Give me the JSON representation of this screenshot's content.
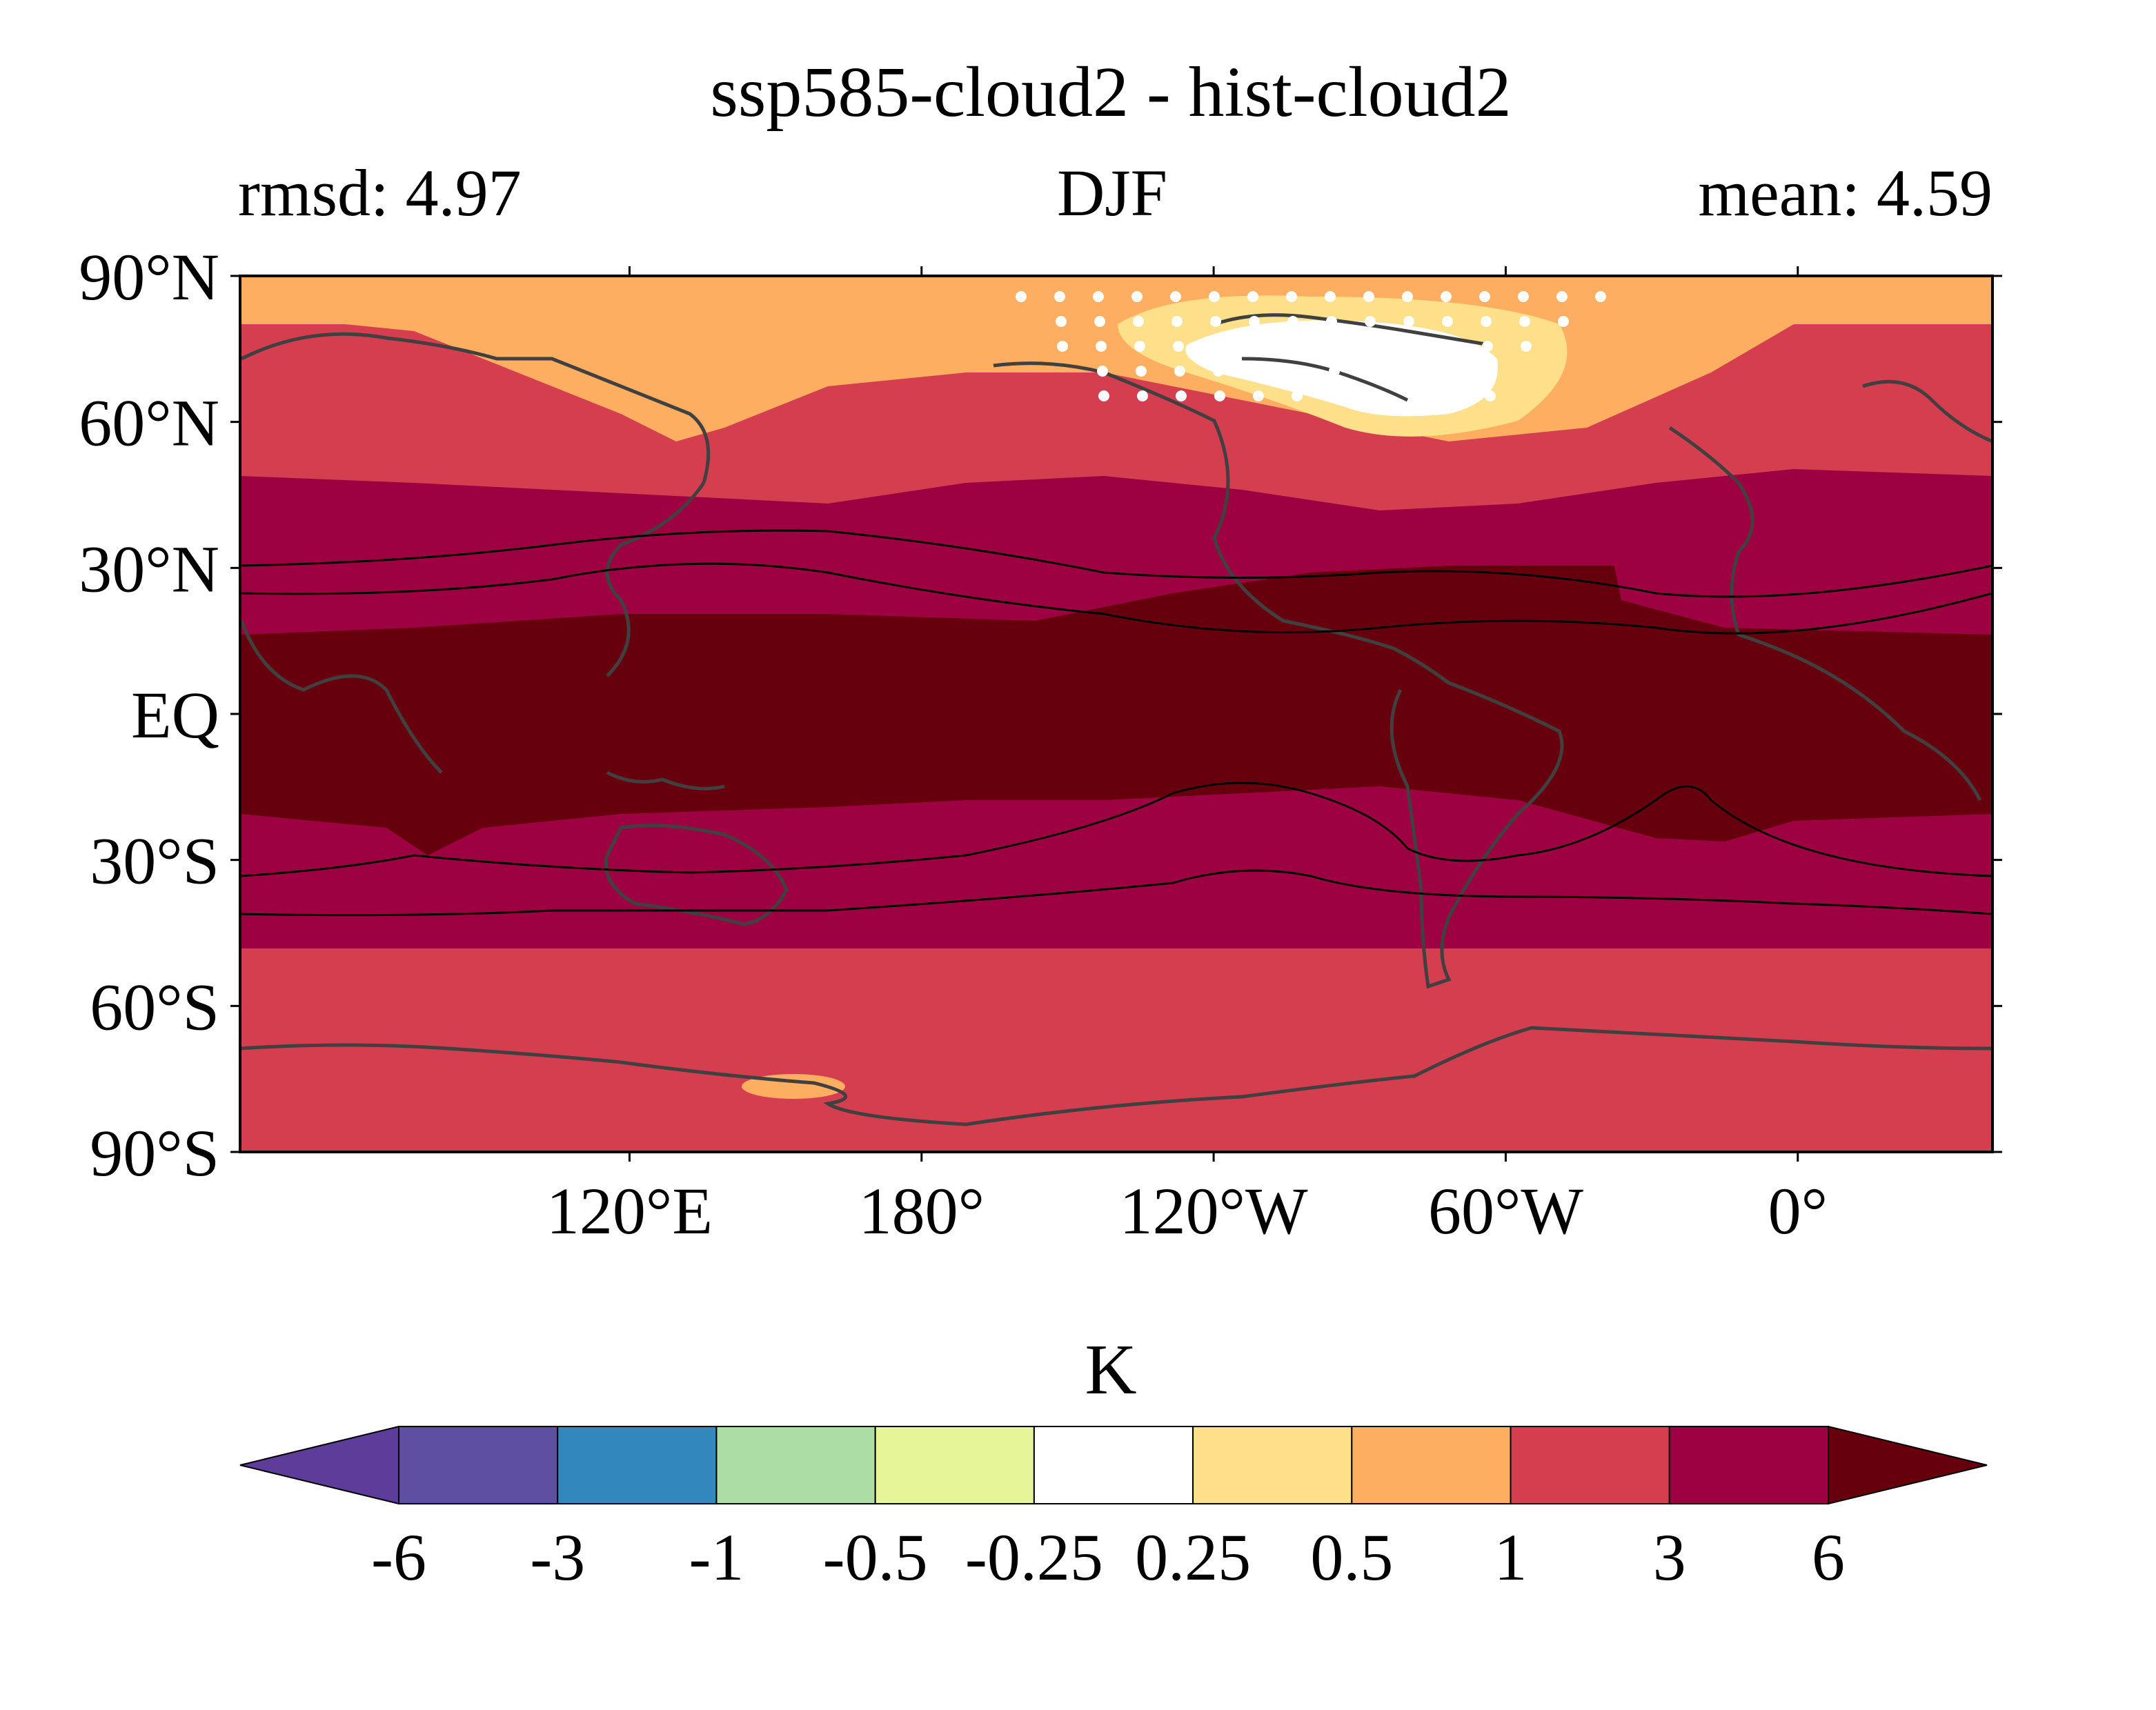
{
  "chart_data": {
    "type": "contour-map",
    "title": "ssp585-cloud2 - hist-cloud2",
    "left_label": "rmsd: 4.97",
    "center_label": "DJF",
    "right_label": "mean: 4.59",
    "y_ticks": [
      {
        "value": 90,
        "label": "90°N"
      },
      {
        "value": 60,
        "label": "60°N"
      },
      {
        "value": 30,
        "label": "30°N"
      },
      {
        "value": 0,
        "label": "EQ"
      },
      {
        "value": -30,
        "label": "30°S"
      },
      {
        "value": -60,
        "label": "60°S"
      },
      {
        "value": -90,
        "label": "90°S"
      }
    ],
    "x_ticks": [
      {
        "value": 120,
        "label": "120°E"
      },
      {
        "value": 180,
        "label": "180°"
      },
      {
        "value": 240,
        "label": "120°W"
      },
      {
        "value": 300,
        "label": "60°W"
      },
      {
        "value": 360,
        "label": "0°"
      }
    ],
    "lon_range": [
      40,
      400
    ],
    "lat_range": [
      -90,
      90
    ],
    "colorbar": {
      "label": "K",
      "boundaries": [
        "-6",
        "-3",
        "-1",
        "-0.5",
        "-0.25",
        "0.25",
        "0.5",
        "1",
        "3",
        "6"
      ],
      "colors": [
        "#5e3c99",
        "#5e4fa2",
        "#3288bd",
        "#abdda4",
        "#e6f598",
        "#ffffff",
        "#fee08b",
        "#fdae61",
        "#d53e4f",
        "#9e0142",
        "#67000d"
      ],
      "extend": "both"
    },
    "bands": [
      {
        "lat_range": [
          75,
          90
        ],
        "level": "0.5 to 1"
      },
      {
        "lat_range": [
          50,
          75
        ],
        "level": "1 to 3"
      },
      {
        "lat_range": [
          18,
          50
        ],
        "level": "3 to 6"
      },
      {
        "lat_range": [
          -20,
          18
        ],
        "level": "> 6"
      },
      {
        "lat_range": [
          -55,
          -20
        ],
        "level": "3 to 6"
      },
      {
        "lat_range": [
          -90,
          -55
        ],
        "level": "1 to 3"
      }
    ],
    "stippling": "regions not significant (over North America / Arctic)"
  }
}
